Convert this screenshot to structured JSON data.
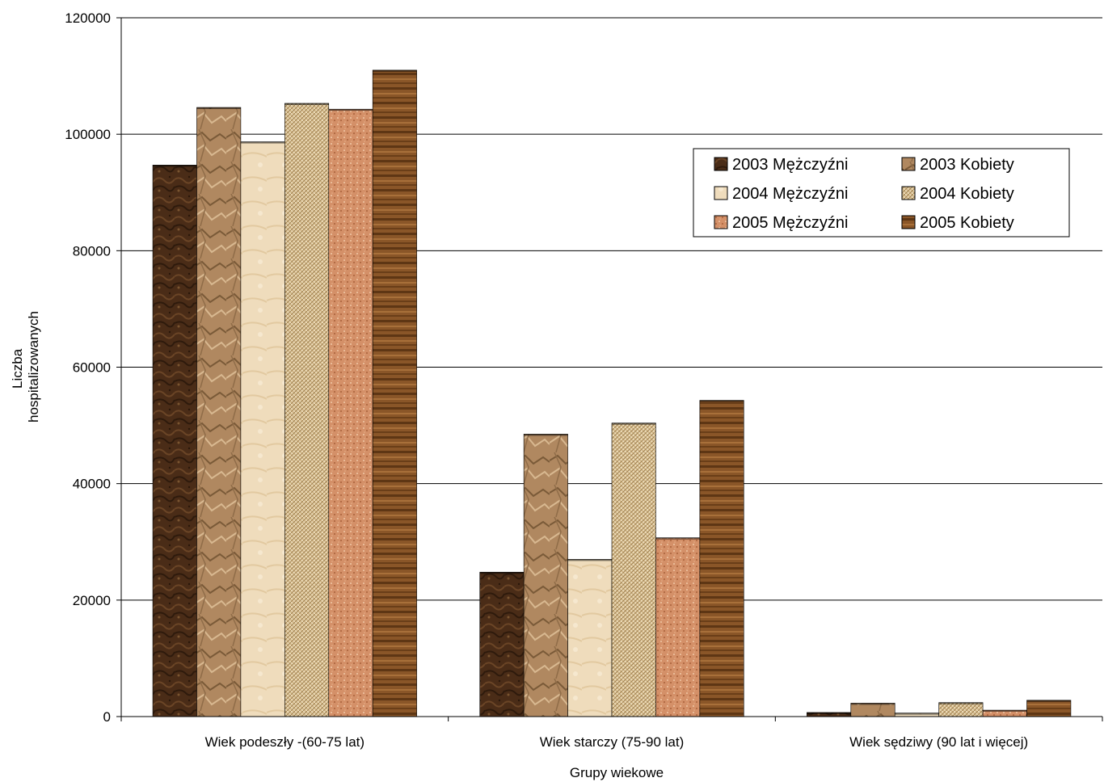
{
  "chart_data": {
    "type": "bar",
    "title": "",
    "xlabel": "Grupy wiekowe",
    "ylabel_lines": [
      "Liczba",
      "hospitalizowanych"
    ],
    "ylim": [
      0,
      120000
    ],
    "yticks": [
      "0",
      "20000",
      "40000",
      "60000",
      "80000",
      "100000",
      "120000"
    ],
    "grid": true,
    "legend_position": "top-right",
    "categories": [
      "Wiek podeszły -(60-75 lat)",
      "Wiek starczy (75-90 lat)",
      "Wiek sędziwy (90 lat i więcej)"
    ],
    "series": [
      {
        "name": "2003 Mężczyźni",
        "values": [
          94700,
          24800,
          700
        ],
        "color": "#4a2c17",
        "pattern": "dark-marble"
      },
      {
        "name": "2003 Kobiety",
        "values": [
          104600,
          48500,
          2300
        ],
        "color": "#b08860",
        "pattern": "crumpled"
      },
      {
        "name": "2004 Mężczyźni",
        "values": [
          98700,
          27000,
          600
        ],
        "color": "#efdcbc",
        "pattern": "parchment"
      },
      {
        "name": "2004 Kobiety",
        "values": [
          105300,
          50400,
          2400
        ],
        "color": "#d4b98a",
        "pattern": "weave"
      },
      {
        "name": "2005 Mężczyźni",
        "values": [
          104300,
          30700,
          1100
        ],
        "color": "#d49068",
        "pattern": "speckle"
      },
      {
        "name": "2005 Kobiety",
        "values": [
          111000,
          54300,
          2800
        ],
        "color": "#8a5628",
        "pattern": "wood"
      }
    ]
  }
}
